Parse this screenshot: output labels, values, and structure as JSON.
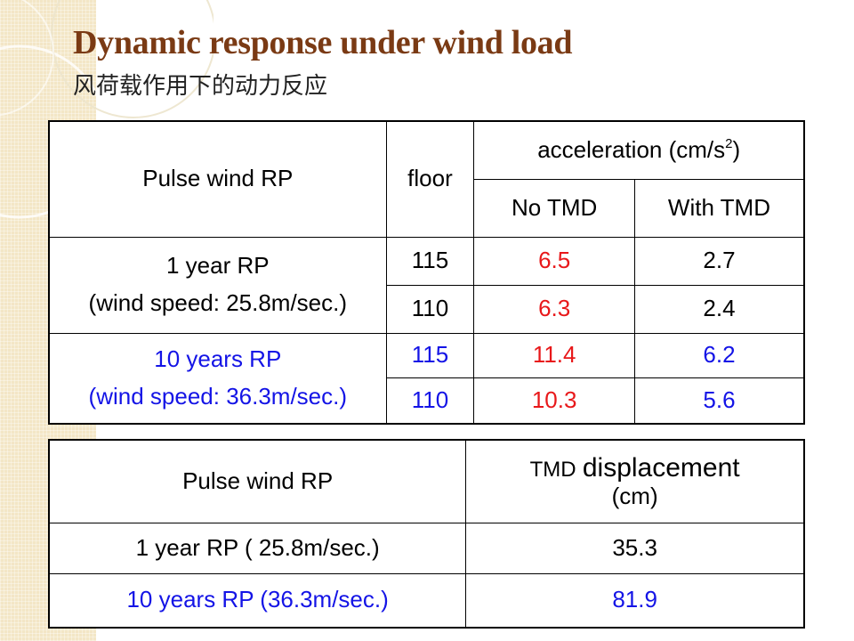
{
  "slide": {
    "title": "Dynamic response under wind load",
    "subtitle": "风荷载作用下的动力反应"
  },
  "accel_table": {
    "header": {
      "pulse_wind_rp": "Pulse wind RP",
      "floor": "floor",
      "acceleration_base": "acceleration  (cm/s",
      "acceleration_sup": "2",
      "acceleration_close": ")",
      "no_tmd": "No TMD",
      "with_tmd": "With TMD"
    },
    "groups": [
      {
        "rp_label": "1 year  RP",
        "wind_speed": "(wind speed:  25.8m/sec.)",
        "rows": [
          {
            "floor": "115",
            "no_tmd": "6.5",
            "with_tmd": "2.7"
          },
          {
            "floor": "110",
            "no_tmd": "6.3",
            "with_tmd": "2.4"
          }
        ]
      },
      {
        "rp_label": "10 years  RP",
        "wind_speed": "(wind speed:  36.3m/sec.)",
        "rows": [
          {
            "floor": "115",
            "no_tmd": "11.4",
            "with_tmd": "6.2"
          },
          {
            "floor": "110",
            "no_tmd": "10.3",
            "with_tmd": "5.6"
          }
        ]
      }
    ]
  },
  "disp_table": {
    "header": {
      "pulse_wind_rp": "Pulse wind RP",
      "tmd_word": "TMD",
      "displacement_word": "displacement",
      "unit": "(cm)"
    },
    "rows": [
      {
        "label": "1 year  RP ( 25.8m/sec.)",
        "value": "35.3"
      },
      {
        "label": "10 years  RP (36.3m/sec.)",
        "value": "81.9"
      }
    ]
  },
  "colors": {
    "title": "#7a3a14",
    "highlight_red": "#e8181a",
    "highlight_blue": "#1414e6",
    "band": "#f3e6c6"
  }
}
